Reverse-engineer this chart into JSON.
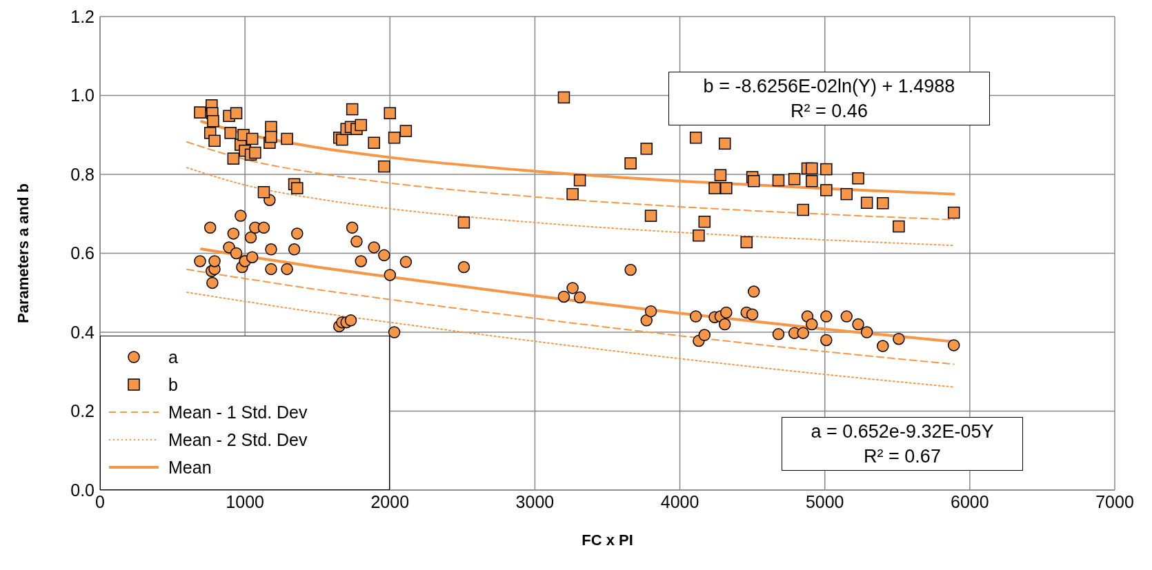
{
  "chart_data": {
    "type": "scatter",
    "xlabel": "FC x PI",
    "ylabel": "Parameters a and b",
    "xlim": [
      0,
      7000
    ],
    "xticks": [
      0,
      1000,
      2000,
      3000,
      4000,
      5000,
      6000,
      7000
    ],
    "ylim": [
      0,
      1.2
    ],
    "yticks": [
      {
        "value": 0,
        "label": "0.0"
      },
      {
        "value": 0.2,
        "label": "0.2"
      },
      {
        "value": 0.4,
        "label": "0.4"
      },
      {
        "value": 0.6,
        "label": "0.6"
      },
      {
        "value": 0.8,
        "label": "0.8"
      },
      {
        "value": 1,
        "label": "1.0"
      },
      {
        "value": 1.2,
        "label": "1.2"
      }
    ],
    "grid": true,
    "legend": "bottom left",
    "annotations": [
      "b = -8.6256E-02ln(Y) + 1.4988\nR² = 0.46",
      "a = 0.652e-9.32E-05Y\nR² = 0.67"
    ],
    "series": [
      {
        "name": "a",
        "marker": "circle",
        "color": "#f79646",
        "x": [
          690,
          760,
          770,
          775,
          790,
          790,
          890,
          920,
          940,
          970,
          980,
          1000,
          1040,
          1050,
          1070,
          1130,
          1170,
          1180,
          1180,
          1290,
          1340,
          1360,
          1650,
          1670,
          1700,
          1730,
          1740,
          1770,
          1800,
          1890,
          1960,
          2000,
          2030,
          2110,
          2510,
          3200,
          3260,
          3310,
          3660,
          3770,
          3800,
          4110,
          4130,
          4170,
          4240,
          4280,
          4310,
          4320,
          4460,
          4500,
          4510,
          4680,
          4790,
          4850,
          4880,
          4910,
          5010,
          5010,
          5150,
          5230,
          5290,
          5400,
          5510,
          5890
        ],
        "values": [
          0.58,
          0.665,
          0.555,
          0.525,
          0.56,
          0.58,
          0.615,
          0.65,
          0.6,
          0.695,
          0.565,
          0.58,
          0.64,
          0.59,
          0.665,
          0.665,
          0.735,
          0.61,
          0.56,
          0.56,
          0.61,
          0.65,
          0.415,
          0.425,
          0.425,
          0.43,
          0.665,
          0.63,
          0.58,
          0.615,
          0.595,
          0.545,
          0.4,
          0.578,
          0.565,
          0.49,
          0.512,
          0.488,
          0.558,
          0.43,
          0.453,
          0.44,
          0.378,
          0.393,
          0.438,
          0.44,
          0.42,
          0.45,
          0.45,
          0.445,
          0.503,
          0.395,
          0.398,
          0.398,
          0.44,
          0.42,
          0.44,
          0.38,
          0.44,
          0.42,
          0.4,
          0.365,
          0.383,
          0.367
        ]
      },
      {
        "name": "b",
        "marker": "square",
        "color": "#f79646",
        "x": [
          690,
          760,
          770,
          775,
          780,
          790,
          890,
          900,
          920,
          940,
          970,
          990,
          1000,
          1040,
          1050,
          1070,
          1130,
          1170,
          1180,
          1180,
          1290,
          1340,
          1360,
          1650,
          1670,
          1700,
          1730,
          1740,
          1770,
          1800,
          1890,
          1960,
          2000,
          2030,
          2110,
          2510,
          3200,
          3260,
          3310,
          3660,
          3770,
          3800,
          4110,
          4130,
          4170,
          4240,
          4280,
          4310,
          4320,
          4460,
          4500,
          4510,
          4680,
          4790,
          4850,
          4880,
          4910,
          4910,
          5010,
          5010,
          5150,
          5230,
          5290,
          5400,
          5510,
          5890
        ],
        "values": [
          0.957,
          0.905,
          0.975,
          0.955,
          0.935,
          0.885,
          0.948,
          0.905,
          0.84,
          0.955,
          0.875,
          0.9,
          0.86,
          0.85,
          0.89,
          0.855,
          0.755,
          0.88,
          0.92,
          0.895,
          0.89,
          0.775,
          0.765,
          0.893,
          0.888,
          0.915,
          0.92,
          0.965,
          0.915,
          0.925,
          0.88,
          0.82,
          0.955,
          0.893,
          0.91,
          0.678,
          0.995,
          0.75,
          0.785,
          0.828,
          0.865,
          0.695,
          0.893,
          0.645,
          0.68,
          0.765,
          0.798,
          0.878,
          0.765,
          0.628,
          0.793,
          0.783,
          0.785,
          0.788,
          0.71,
          0.815,
          0.815,
          0.783,
          0.813,
          0.76,
          0.75,
          0.79,
          0.728,
          0.727,
          0.668,
          0.703
        ]
      },
      {
        "name": "Mean - 1 Std. Dev",
        "type": "line",
        "line_style": "dashed",
        "marker": "none",
        "color": "#f79646",
        "x": [
          600,
          1000,
          1500,
          2000,
          3000,
          4000,
          5000,
          5890
        ],
        "values": [
          0.559,
          0.536,
          0.508,
          0.483,
          0.435,
          0.391,
          0.351,
          0.319
        ]
      },
      {
        "name": "Mean - 2 Std. Dev",
        "type": "line",
        "line_style": "dotted",
        "marker": "none",
        "color": "#f79646",
        "x": [
          600,
          1000,
          1500,
          2000,
          3000,
          4000,
          5000,
          5890
        ],
        "values": [
          0.501,
          0.478,
          0.45,
          0.425,
          0.377,
          0.333,
          0.293,
          0.261
        ]
      },
      {
        "name": "Mean",
        "type": "line",
        "line_style": "solid",
        "marker": "none",
        "color": "#f79646",
        "x": [
          700,
          1000,
          1500,
          2000,
          3000,
          4000,
          5000,
          5890
        ],
        "values": [
          0.611,
          0.593,
          0.565,
          0.54,
          0.492,
          0.448,
          0.408,
          0.376
        ]
      },
      {
        "type": "line",
        "line_style": "dashed",
        "marker": "none",
        "color": "#f79646",
        "x": [
          600,
          1000,
          1500,
          2000,
          3000,
          4000,
          5000,
          5890
        ],
        "values": [
          0.882,
          0.838,
          0.803,
          0.778,
          0.743,
          0.718,
          0.699,
          0.685
        ]
      },
      {
        "type": "line",
        "line_style": "dotted",
        "marker": "none",
        "color": "#f79646",
        "x": [
          600,
          1000,
          1500,
          2000,
          3000,
          4000,
          5000,
          5890
        ],
        "values": [
          0.817,
          0.773,
          0.738,
          0.713,
          0.678,
          0.653,
          0.634,
          0.62
        ]
      },
      {
        "type": "line",
        "line_style": "solid",
        "marker": "none",
        "color": "#f79646",
        "x": [
          700,
          1000,
          1500,
          2000,
          3000,
          4000,
          5000,
          5890
        ],
        "values": [
          0.934,
          0.903,
          0.868,
          0.843,
          0.808,
          0.783,
          0.764,
          0.75
        ]
      }
    ]
  }
}
